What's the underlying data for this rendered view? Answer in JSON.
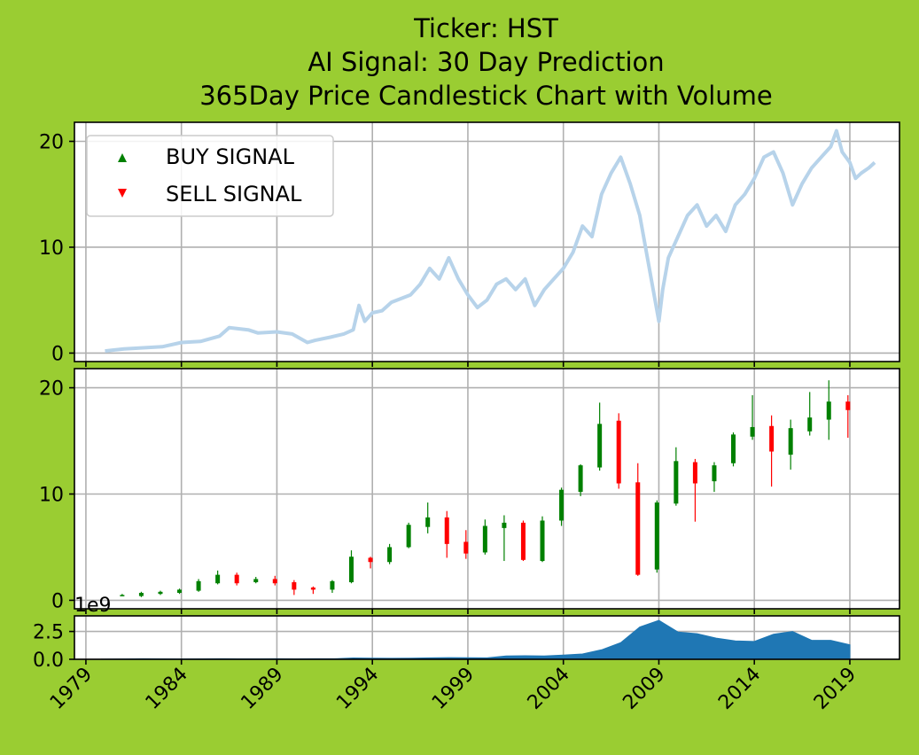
{
  "titles": {
    "line1": "Ticker: HST",
    "line2": "AI Signal: 30 Day Prediction",
    "line3": "365Day Price Candlestick Chart with Volume"
  },
  "legend": {
    "buy": "BUY SIGNAL",
    "sell": "SELL SIGNAL"
  },
  "colors": {
    "background": "#9acd32",
    "up": "#008000",
    "down": "#ff0000",
    "line": "#b7d3ea",
    "volume": "#1f77b4"
  },
  "chart_data": [
    {
      "type": "line",
      "panel": "price",
      "x_range": [
        1978.4,
        2021.6
      ],
      "ylim": [
        -0.8,
        21.8
      ],
      "yticks": [
        0,
        10,
        20
      ],
      "grid": true,
      "legend_position": "upper-left",
      "series": [
        {
          "x": [
            1980.0,
            1981.0,
            1982.0,
            1983.0,
            1984.0,
            1985.0,
            1986.0,
            1986.5,
            1987.5,
            1988.0,
            1989.0,
            1989.8,
            1990.6,
            1991.0,
            1991.8,
            1992.5,
            1993.0,
            1993.3,
            1993.6,
            1994.0,
            1994.5,
            1995.0,
            1996.0,
            1996.5,
            1997.0,
            1997.5,
            1998.0,
            1998.5,
            1999.0,
            1999.5,
            2000.0,
            2000.5,
            2001.0,
            2001.5,
            2002.0,
            2002.5,
            2003.0,
            2003.5,
            2004.0,
            2004.5,
            2005.0,
            2005.5,
            2006.0,
            2006.5,
            2007.0,
            2007.5,
            2008.0,
            2008.5,
            2009.0,
            2009.2,
            2009.5,
            2010.0,
            2010.5,
            2011.0,
            2011.5,
            2012.0,
            2012.5,
            2013.0,
            2013.5,
            2014.0,
            2014.5,
            2015.0,
            2015.5,
            2016.0,
            2016.5,
            2017.0,
            2017.5,
            2018.0,
            2018.3,
            2018.6,
            2019.0,
            2019.3,
            2019.6,
            2020.0,
            2020.3
          ],
          "y": [
            0.2,
            0.4,
            0.5,
            0.6,
            1.0,
            1.1,
            1.6,
            2.4,
            2.2,
            1.9,
            2.0,
            1.8,
            1.0,
            1.2,
            1.5,
            1.8,
            2.2,
            4.5,
            3.0,
            3.8,
            4.0,
            4.8,
            5.5,
            6.5,
            8.0,
            7.0,
            9.0,
            7.0,
            5.5,
            4.3,
            5.0,
            6.5,
            7.0,
            6.0,
            7.0,
            4.5,
            6.0,
            7.0,
            8.0,
            9.5,
            12.0,
            11.0,
            15.0,
            17.0,
            18.5,
            16.0,
            13.0,
            8.0,
            3.0,
            6.0,
            9.0,
            11.0,
            13.0,
            14.0,
            12.0,
            13.0,
            11.5,
            14.0,
            15.0,
            16.5,
            18.5,
            19.0,
            17.0,
            14.0,
            16.0,
            17.5,
            18.5,
            19.5,
            21.0,
            19.0,
            18.0,
            16.5,
            17.0,
            17.5,
            18.0
          ]
        }
      ],
      "buy_signals": [],
      "sell_signals": []
    },
    {
      "type": "candlestick",
      "panel": "candles",
      "ylim": [
        -0.8,
        21.8
      ],
      "yticks": [
        0,
        10,
        20
      ],
      "grid": true,
      "candles": [
        {
          "x": 1980.9,
          "o": 0.5,
          "c": 0.5,
          "h": 0.6,
          "l": 0.4
        },
        {
          "x": 1981.9,
          "o": 0.4,
          "c": 0.7,
          "h": 0.8,
          "l": 0.3
        },
        {
          "x": 1982.9,
          "o": 0.6,
          "c": 0.8,
          "h": 0.9,
          "l": 0.5
        },
        {
          "x": 1983.9,
          "o": 0.7,
          "c": 1.0,
          "h": 1.1,
          "l": 0.6
        },
        {
          "x": 1984.9,
          "o": 0.9,
          "c": 1.8,
          "h": 2.0,
          "l": 0.8
        },
        {
          "x": 1985.9,
          "o": 1.6,
          "c": 2.4,
          "h": 2.8,
          "l": 1.5
        },
        {
          "x": 1986.9,
          "o": 2.4,
          "c": 1.6,
          "h": 2.6,
          "l": 1.4
        },
        {
          "x": 1987.9,
          "o": 1.7,
          "c": 2.0,
          "h": 2.2,
          "l": 1.6
        },
        {
          "x": 1988.9,
          "o": 2.0,
          "c": 1.6,
          "h": 2.3,
          "l": 1.4
        },
        {
          "x": 1989.9,
          "o": 1.7,
          "c": 1.0,
          "h": 1.9,
          "l": 0.5
        },
        {
          "x": 1990.9,
          "o": 1.2,
          "c": 1.0,
          "h": 1.3,
          "l": 0.6
        },
        {
          "x": 1991.9,
          "o": 1.0,
          "c": 1.8,
          "h": 1.9,
          "l": 0.7
        },
        {
          "x": 1992.9,
          "o": 1.7,
          "c": 4.1,
          "h": 4.7,
          "l": 1.6
        },
        {
          "x": 1993.9,
          "o": 4.0,
          "c": 3.6,
          "h": 4.1,
          "l": 3.0
        },
        {
          "x": 1994.9,
          "o": 3.6,
          "c": 5.0,
          "h": 5.3,
          "l": 3.4
        },
        {
          "x": 1995.9,
          "o": 5.0,
          "c": 7.1,
          "h": 7.3,
          "l": 4.9
        },
        {
          "x": 1996.9,
          "o": 6.9,
          "c": 7.8,
          "h": 9.2,
          "l": 6.3
        },
        {
          "x": 1997.9,
          "o": 7.8,
          "c": 5.3,
          "h": 8.4,
          "l": 4.0
        },
        {
          "x": 1998.9,
          "o": 5.5,
          "c": 4.4,
          "h": 6.6,
          "l": 3.9
        },
        {
          "x": 1999.9,
          "o": 4.5,
          "c": 7.0,
          "h": 7.6,
          "l": 4.3
        },
        {
          "x": 2000.9,
          "o": 6.8,
          "c": 7.3,
          "h": 8.0,
          "l": 3.7
        },
        {
          "x": 2001.9,
          "o": 7.3,
          "c": 3.8,
          "h": 7.5,
          "l": 3.7
        },
        {
          "x": 2002.9,
          "o": 3.7,
          "c": 7.5,
          "h": 7.9,
          "l": 3.6
        },
        {
          "x": 2003.9,
          "o": 7.5,
          "c": 10.4,
          "h": 10.6,
          "l": 7.0
        },
        {
          "x": 2004.9,
          "o": 10.2,
          "c": 12.7,
          "h": 12.8,
          "l": 9.8
        },
        {
          "x": 2005.9,
          "o": 12.5,
          "c": 16.6,
          "h": 18.6,
          "l": 12.2
        },
        {
          "x": 2006.9,
          "o": 16.9,
          "c": 11.0,
          "h": 17.6,
          "l": 10.5
        },
        {
          "x": 2007.9,
          "o": 11.1,
          "c": 2.4,
          "h": 12.9,
          "l": 2.3
        },
        {
          "x": 2008.9,
          "o": 2.9,
          "c": 9.2,
          "h": 9.4,
          "l": 2.6
        },
        {
          "x": 2009.9,
          "o": 9.1,
          "c": 13.1,
          "h": 14.4,
          "l": 8.9
        },
        {
          "x": 2010.9,
          "o": 13.0,
          "c": 11.0,
          "h": 13.3,
          "l": 7.4
        },
        {
          "x": 2011.9,
          "o": 11.2,
          "c": 12.7,
          "h": 13.0,
          "l": 10.2
        },
        {
          "x": 2012.9,
          "o": 12.9,
          "c": 15.6,
          "h": 15.8,
          "l": 12.6
        },
        {
          "x": 2013.9,
          "o": 15.4,
          "c": 16.3,
          "h": 19.3,
          "l": 15.1
        },
        {
          "x": 2014.9,
          "o": 16.4,
          "c": 14.0,
          "h": 17.4,
          "l": 10.7
        },
        {
          "x": 2015.9,
          "o": 13.7,
          "c": 16.2,
          "h": 17.0,
          "l": 12.3
        },
        {
          "x": 2016.9,
          "o": 15.9,
          "c": 17.2,
          "h": 19.6,
          "l": 15.5
        },
        {
          "x": 2017.9,
          "o": 17.0,
          "c": 18.7,
          "h": 20.7,
          "l": 15.1
        },
        {
          "x": 2018.9,
          "o": 18.7,
          "c": 17.9,
          "h": 19.3,
          "l": 15.3
        }
      ]
    },
    {
      "type": "area",
      "panel": "volume",
      "ylim": [
        0,
        3900000000.0
      ],
      "yticks": [
        0.0,
        2.5
      ],
      "ytick_labels": [
        "0.0",
        "2.5"
      ],
      "offset_text": "1e9",
      "grid": true,
      "x": [
        1979.8,
        1980.5,
        1981.0,
        1982.0,
        1983.0,
        1984.0,
        1985.0,
        1986.0,
        1987.0,
        1988.0,
        1989.0,
        1990.0,
        1991.0,
        1992.0,
        1993.0,
        1994.0,
        1995.0,
        1996.0,
        1997.0,
        1998.0,
        1999.0,
        2000.0,
        2001.0,
        2002.0,
        2003.0,
        2004.0,
        2005.0,
        2006.0,
        2007.0,
        2008.0,
        2009.0,
        2010.0,
        2011.0,
        2012.0,
        2013.0,
        2014.0,
        2015.0,
        2016.0,
        2017.0,
        2018.0,
        2019.0
      ],
      "values": [
        10000000.0,
        20000000.0,
        30000000.0,
        50000000.0,
        40000000.0,
        30000000.0,
        40000000.0,
        50000000.0,
        40000000.0,
        40000000.0,
        50000000.0,
        40000000.0,
        50000000.0,
        50000000.0,
        120000000.0,
        100000000.0,
        90000000.0,
        100000000.0,
        130000000.0,
        150000000.0,
        140000000.0,
        130000000.0,
        300000000.0,
        320000000.0,
        300000000.0,
        380000000.0,
        480000000.0,
        850000000.0,
        1500000000.0,
        2900000000.0,
        3500000000.0,
        2450000000.0,
        2300000000.0,
        1900000000.0,
        1650000000.0,
        1600000000.0,
        2250000000.0,
        2500000000.0,
        1700000000.0,
        1700000000.0,
        1300000000.0
      ]
    }
  ],
  "xaxis": {
    "ticks": [
      1979,
      1984,
      1989,
      1994,
      1999,
      2004,
      2009,
      2014,
      2019
    ],
    "labels": [
      "1979",
      "1984",
      "1989",
      "1994",
      "1999",
      "2004",
      "2009",
      "2014",
      "2019"
    ]
  }
}
